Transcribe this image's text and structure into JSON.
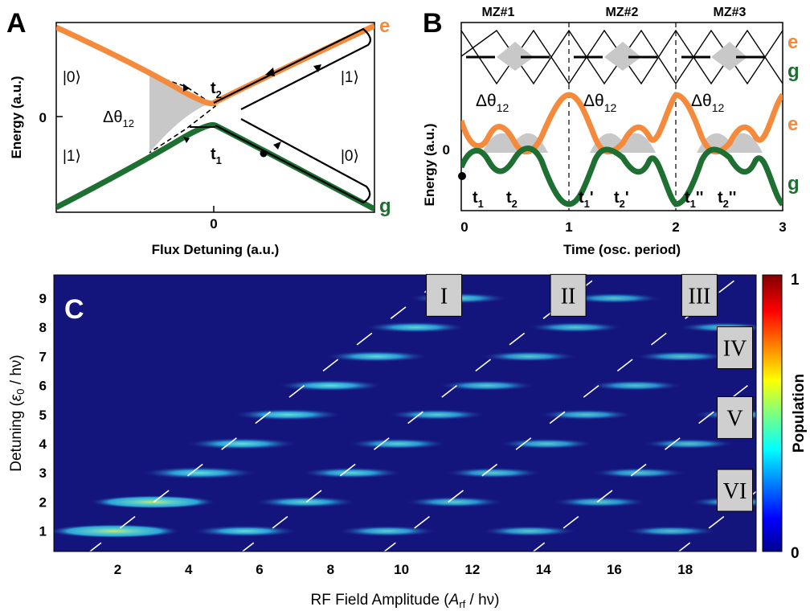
{
  "panels": {
    "A": {
      "label": "A",
      "xlabel": "Flux Detuning (a.u.)",
      "ylabel": "Energy (a.u.)",
      "xtick": "0",
      "ytick": "0",
      "state_e": "e",
      "state_g": "g",
      "ket_upper_left": "|0⟩",
      "ket_lower_left": "|1⟩",
      "ket_upper_right": "|1⟩",
      "ket_lower_right": "|0⟩",
      "phase_label": "Δθ",
      "phase_sub": "12",
      "t2_main": "t",
      "t2_sub": "2",
      "t1_main": "t",
      "t1_sub": "1"
    },
    "B": {
      "label": "B",
      "xlabel": "Time (osc. period)",
      "ylabel": "Energy (a.u.)",
      "xticks": [
        "0",
        "1",
        "2",
        "3"
      ],
      "ytick": "0",
      "mz_labels": [
        "MZ#1",
        "MZ#2",
        "MZ#3"
      ],
      "state_e_top": "e",
      "state_g_top": "g",
      "state_e": "e",
      "state_g": "g",
      "phase_main": "Δθ",
      "phase_sub": "12",
      "time_labels": [
        {
          "main": "t",
          "sub": "1",
          "prime": ""
        },
        {
          "main": "t",
          "sub": "2",
          "prime": ""
        },
        {
          "main": "t",
          "sub": "1",
          "prime": "'"
        },
        {
          "main": "t",
          "sub": "2",
          "prime": "'"
        },
        {
          "main": "t",
          "sub": "1",
          "prime": "''"
        },
        {
          "main": "t",
          "sub": "2",
          "prime": "''"
        }
      ]
    },
    "C": {
      "label": "C",
      "xlabel_pre": "RF Field Amplitude (",
      "xlabel_A": "A",
      "xlabel_sub": "rf",
      "xlabel_post": " / hν)",
      "ylabel_pre": "Detuning (",
      "ylabel_eps": "ε",
      "ylabel_sub": "0",
      "ylabel_post": " / hν)",
      "colorbar_label": "Population",
      "colorbar_ticks": [
        "1",
        "0"
      ],
      "xticks": [
        "2",
        "4",
        "6",
        "8",
        "10",
        "12",
        "14",
        "16",
        "18"
      ],
      "yticks": [
        "1",
        "2",
        "3",
        "4",
        "5",
        "6",
        "7",
        "8",
        "9"
      ],
      "regions": [
        "I",
        "II",
        "III",
        "IV",
        "V",
        "VI"
      ]
    }
  },
  "chart_data": [
    {
      "type": "heatmap",
      "panel": "C",
      "xlabel": "RF Field Amplitude (Arf / hν)",
      "ylabel": "Detuning (ε0 / hν)",
      "xlim": [
        0.2,
        20
      ],
      "ylim": [
        0.3,
        9.8
      ],
      "colorbar": {
        "label": "Population",
        "range": [
          0,
          1
        ],
        "colormap": "jet"
      },
      "background_color": "#14147d",
      "resonances": [
        {
          "n": 1,
          "centers": [
            1.9,
            5.6,
            9.6,
            13.6,
            17.6
          ],
          "intensity": [
            0.72,
            0.45,
            0.38,
            0.34,
            0.3
          ]
        },
        {
          "n": 2,
          "centers": [
            3.0,
            7.3,
            11.5,
            15.6,
            19.4
          ],
          "intensity": [
            0.65,
            0.42,
            0.37,
            0.33,
            0.3
          ]
        },
        {
          "n": 3,
          "centers": [
            4.3,
            8.6,
            12.6,
            16.7
          ],
          "intensity": [
            0.55,
            0.4,
            0.35,
            0.32
          ]
        },
        {
          "n": 4,
          "centers": [
            5.5,
            9.9,
            14.1,
            18.1
          ],
          "intensity": [
            0.5,
            0.38,
            0.34,
            0.3
          ]
        },
        {
          "n": 5,
          "centers": [
            6.8,
            11.0,
            15.2,
            19.5
          ],
          "intensity": [
            0.48,
            0.36,
            0.33,
            0.3
          ]
        },
        {
          "n": 6,
          "centers": [
            8.0,
            12.4,
            16.6
          ],
          "intensity": [
            0.45,
            0.35,
            0.32
          ]
        },
        {
          "n": 7,
          "centers": [
            9.3,
            13.6,
            17.9
          ],
          "intensity": [
            0.42,
            0.34,
            0.31
          ]
        },
        {
          "n": 8,
          "centers": [
            10.4,
            14.9,
            19.1
          ],
          "intensity": [
            0.4,
            0.33,
            0.3
          ]
        },
        {
          "n": 9,
          "centers": [
            11.6,
            16.0
          ],
          "intensity": [
            0.38,
            0.32
          ]
        }
      ],
      "diagonal_boundaries": [
        {
          "label": "I",
          "x_at_y0": 0.9,
          "slope": 1.06
        },
        {
          "label": "II",
          "x_at_y0": 5.2,
          "slope": 1.06
        },
        {
          "label": "III",
          "x_at_y0": 9.2,
          "slope": 1.06
        },
        {
          "label": "IV",
          "x_at_y0": 13.4,
          "slope": 1.06
        },
        {
          "label": "V",
          "x_at_y0": 17.5,
          "slope": 1.06
        }
      ]
    }
  ],
  "colors": {
    "excited": "#f58a3c",
    "ground": "#1e6f32",
    "grey_fill": "#c8c8c8",
    "box_fill": "#cfcfcf",
    "heatmap_bg": "#14147d",
    "dash_white": "#ffffff"
  }
}
